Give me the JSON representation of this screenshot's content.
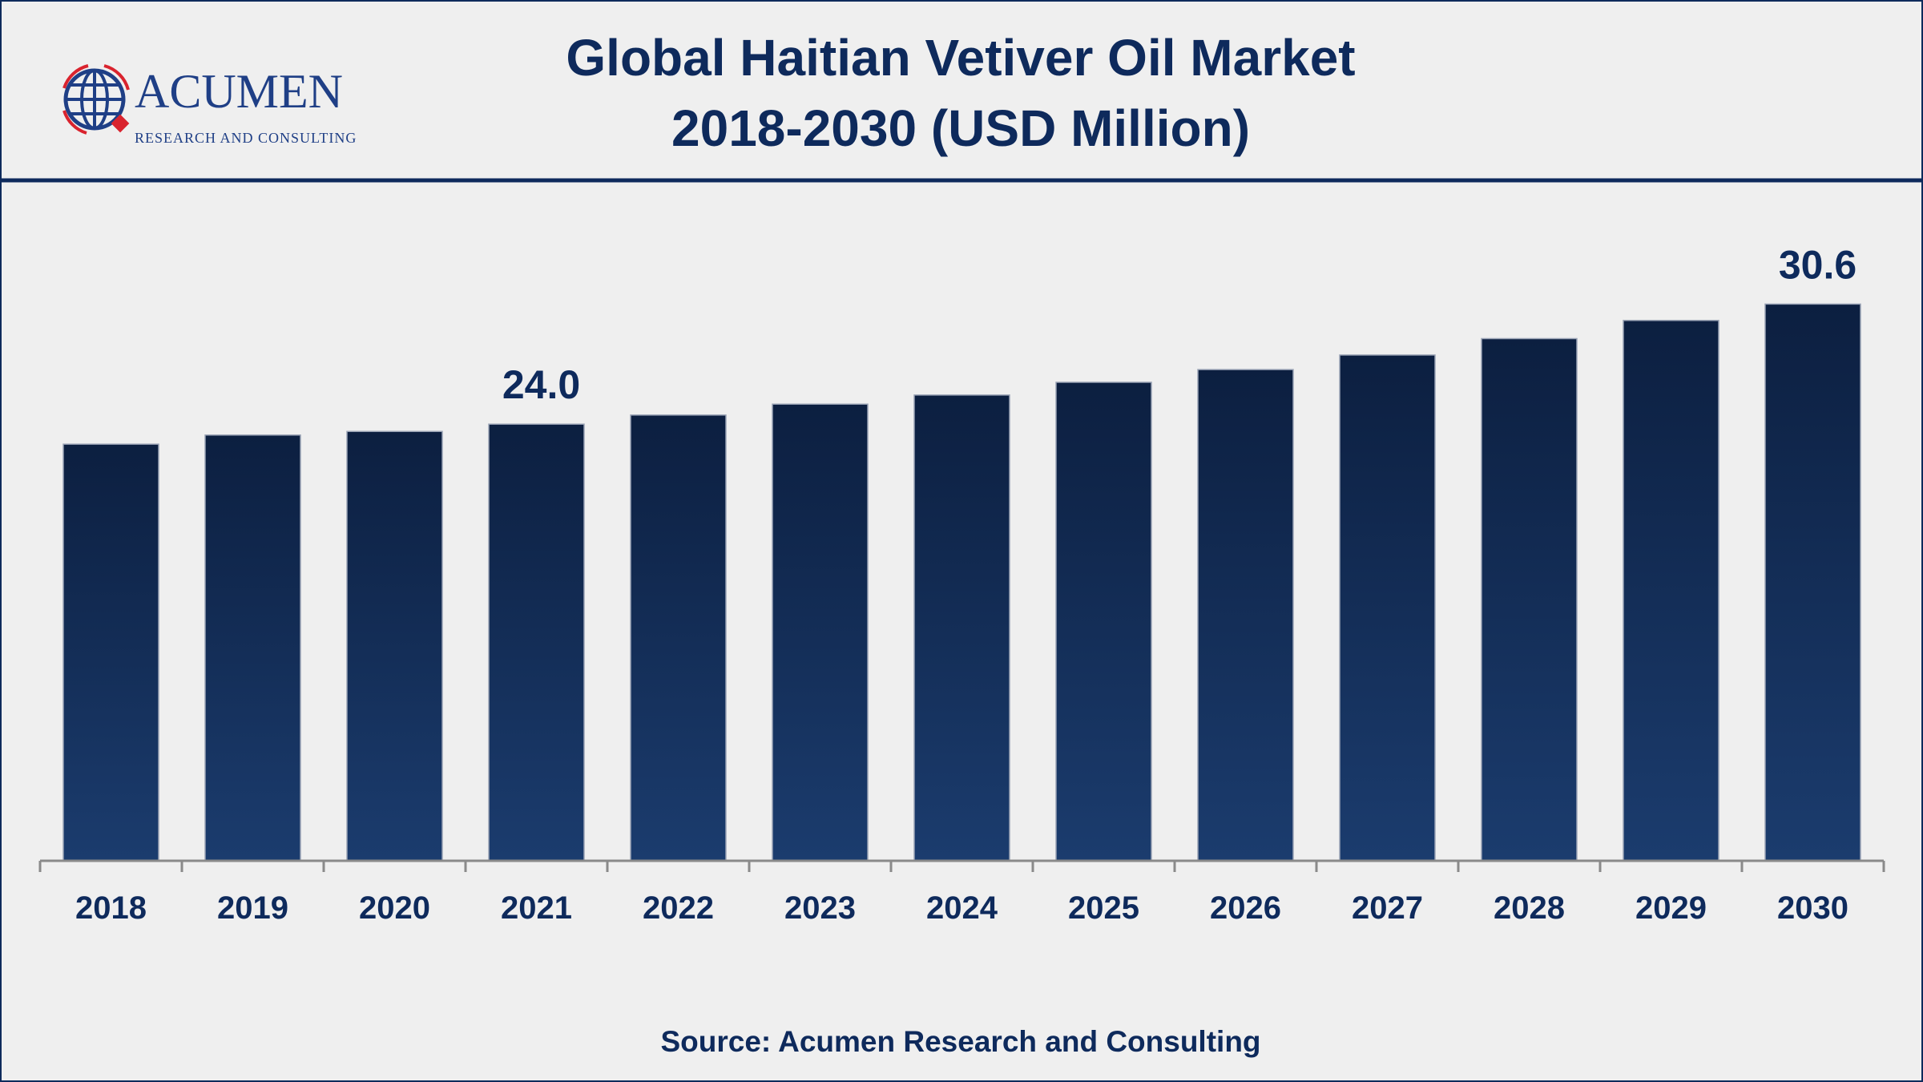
{
  "logo": {
    "name": "ACUMEN",
    "tagline": "RESEARCH AND CONSULTING"
  },
  "colors": {
    "title": "#0e2a5c",
    "bar_top": "#0c1f40",
    "bar_bottom": "#1b3c6e",
    "accent": "#d9232e"
  },
  "chart_data": {
    "type": "bar",
    "title": "Global Haitian Vetiver Oil Market",
    "subtitle": "2018-2030 (USD Million)",
    "xlabel": "",
    "ylabel": "",
    "categories": [
      "2018",
      "2019",
      "2020",
      "2021",
      "2022",
      "2023",
      "2024",
      "2025",
      "2026",
      "2027",
      "2028",
      "2029",
      "2030"
    ],
    "values": [
      22.9,
      23.4,
      23.6,
      24.0,
      24.5,
      25.1,
      25.6,
      26.3,
      27.0,
      27.8,
      28.7,
      29.7,
      30.6
    ],
    "data_labels": {
      "2021": "24.0",
      "2030": "30.6"
    },
    "ylim": [
      0,
      35
    ],
    "grid": false,
    "legend": "none"
  },
  "source": "Source: Acumen Research and Consulting"
}
